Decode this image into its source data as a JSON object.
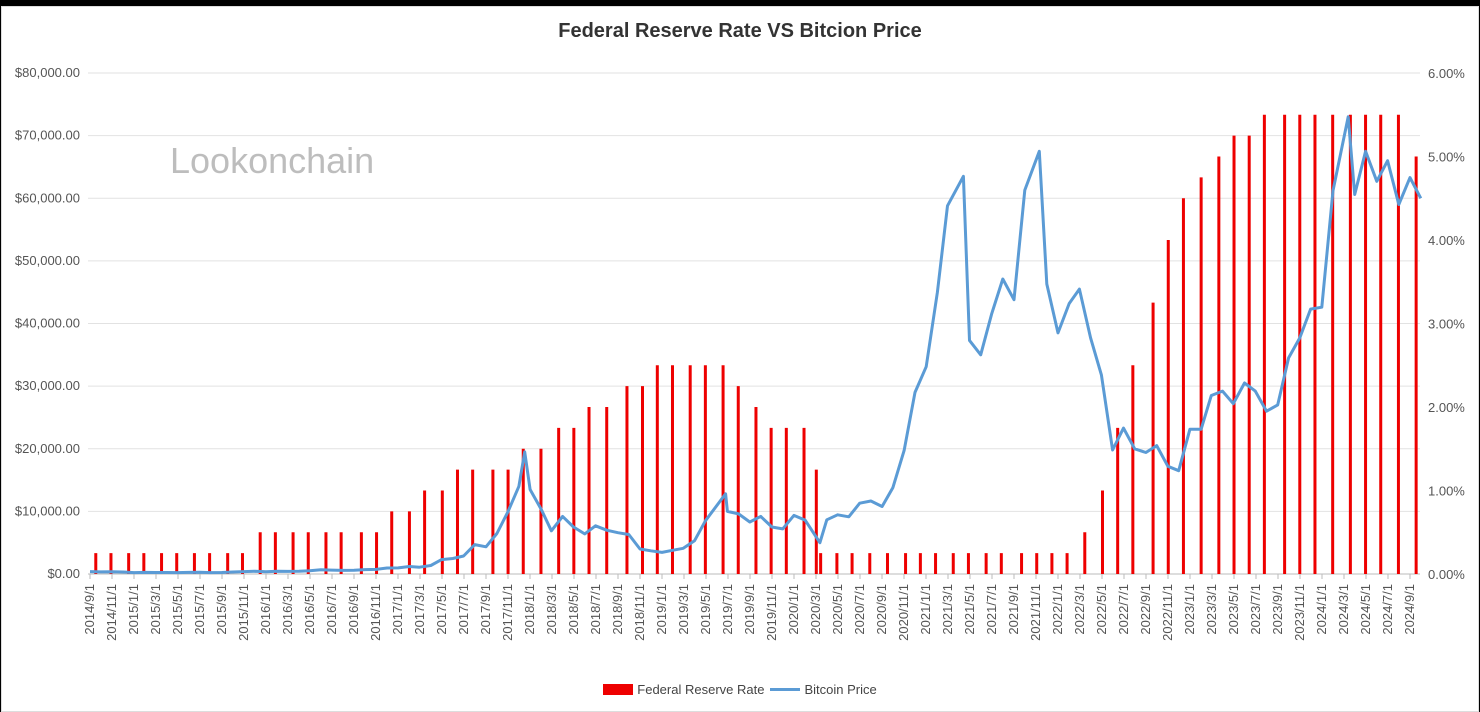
{
  "chart_data": {
    "type": "bar+line",
    "title": "Federal Reserve Rate VS Bitcion Price",
    "watermark": "Lookonchain",
    "colors": {
      "rate": "#ee0000",
      "price": "#5b9bd5"
    },
    "grid": true,
    "legend_placement": "bottom",
    "y_left": {
      "range": [
        0,
        80000
      ],
      "ticks": [
        "$0.00",
        "$10,000.00",
        "$20,000.00",
        "$30,000.00",
        "$40,000.00",
        "$50,000.00",
        "$60,000.00",
        "$70,000.00",
        "$80,000.00"
      ]
    },
    "y_right": {
      "range": [
        0,
        6
      ],
      "ticks": [
        "0.00%",
        "1.00%",
        "2.00%",
        "3.00%",
        "4.00%",
        "5.00%",
        "6.00%"
      ]
    },
    "x_ticks": [
      "2014/9/1",
      "2014/11/1",
      "2015/1/1",
      "2015/3/1",
      "2015/5/1",
      "2015/7/1",
      "2015/9/1",
      "2015/11/1",
      "2016/1/1",
      "2016/3/1",
      "2016/5/1",
      "2016/7/1",
      "2016/9/1",
      "2016/11/1",
      "2017/1/1",
      "2017/3/1",
      "2017/5/1",
      "2017/7/1",
      "2017/9/1",
      "2017/11/1",
      "2018/1/1",
      "2018/3/1",
      "2018/5/1",
      "2018/7/1",
      "2018/9/1",
      "2018/11/1",
      "2019/1/1",
      "2019/3/1",
      "2019/5/1",
      "2019/7/1",
      "2019/9/1",
      "2019/11/1",
      "2020/1/1",
      "2020/3/1",
      "2020/5/1",
      "2020/7/1",
      "2020/9/1",
      "2020/11/1",
      "2021/1/1",
      "2021/3/1",
      "2021/5/1",
      "2021/7/1",
      "2021/9/1",
      "2021/11/1",
      "2022/1/1",
      "2022/3/1",
      "2022/5/1",
      "2022/7/1",
      "2022/9/1",
      "2022/11/1",
      "2023/1/1",
      "2023/3/1",
      "2023/5/1",
      "2023/7/1",
      "2023/9/1",
      "2023/11/1",
      "2024/1/1",
      "2024/3/1",
      "2024/5/1",
      "2024/7/1",
      "2024/9/1"
    ],
    "series": [
      {
        "name": "Federal Reserve Rate",
        "type": "bar",
        "axis": "right",
        "points": [
          [
            "2014-09-17",
            0.25
          ],
          [
            "2014-10-29",
            0.25
          ],
          [
            "2014-12-17",
            0.25
          ],
          [
            "2015-01-28",
            0.25
          ],
          [
            "2015-03-18",
            0.25
          ],
          [
            "2015-04-29",
            0.25
          ],
          [
            "2015-06-17",
            0.25
          ],
          [
            "2015-07-29",
            0.25
          ],
          [
            "2015-09-17",
            0.25
          ],
          [
            "2015-10-28",
            0.25
          ],
          [
            "2015-12-16",
            0.5
          ],
          [
            "2016-01-27",
            0.5
          ],
          [
            "2016-03-16",
            0.5
          ],
          [
            "2016-04-27",
            0.5
          ],
          [
            "2016-06-15",
            0.5
          ],
          [
            "2016-07-27",
            0.5
          ],
          [
            "2016-09-21",
            0.5
          ],
          [
            "2016-11-02",
            0.5
          ],
          [
            "2016-12-14",
            0.75
          ],
          [
            "2017-02-01",
            0.75
          ],
          [
            "2017-03-15",
            1.0
          ],
          [
            "2017-05-03",
            1.0
          ],
          [
            "2017-06-14",
            1.25
          ],
          [
            "2017-07-26",
            1.25
          ],
          [
            "2017-09-20",
            1.25
          ],
          [
            "2017-11-01",
            1.25
          ],
          [
            "2017-12-13",
            1.5
          ],
          [
            "2018-01-31",
            1.5
          ],
          [
            "2018-03-21",
            1.75
          ],
          [
            "2018-05-02",
            1.75
          ],
          [
            "2018-06-13",
            2.0
          ],
          [
            "2018-08-01",
            2.0
          ],
          [
            "2018-09-26",
            2.25
          ],
          [
            "2018-11-08",
            2.25
          ],
          [
            "2018-12-19",
            2.5
          ],
          [
            "2019-01-30",
            2.5
          ],
          [
            "2019-03-20",
            2.5
          ],
          [
            "2019-05-01",
            2.5
          ],
          [
            "2019-06-19",
            2.5
          ],
          [
            "2019-07-31",
            2.25
          ],
          [
            "2019-09-18",
            2.0
          ],
          [
            "2019-10-30",
            1.75
          ],
          [
            "2019-12-11",
            1.75
          ],
          [
            "2020-01-29",
            1.75
          ],
          [
            "2020-03-03",
            1.25
          ],
          [
            "2020-03-15",
            0.25
          ],
          [
            "2020-04-29",
            0.25
          ],
          [
            "2020-06-10",
            0.25
          ],
          [
            "2020-07-29",
            0.25
          ],
          [
            "2020-09-16",
            0.25
          ],
          [
            "2020-11-05",
            0.25
          ],
          [
            "2020-12-16",
            0.25
          ],
          [
            "2021-01-27",
            0.25
          ],
          [
            "2021-03-17",
            0.25
          ],
          [
            "2021-04-28",
            0.25
          ],
          [
            "2021-06-16",
            0.25
          ],
          [
            "2021-07-28",
            0.25
          ],
          [
            "2021-09-22",
            0.25
          ],
          [
            "2021-11-03",
            0.25
          ],
          [
            "2021-12-15",
            0.25
          ],
          [
            "2022-01-26",
            0.25
          ],
          [
            "2022-03-16",
            0.5
          ],
          [
            "2022-05-04",
            1.0
          ],
          [
            "2022-06-15",
            1.75
          ],
          [
            "2022-07-27",
            2.5
          ],
          [
            "2022-09-21",
            3.25
          ],
          [
            "2022-11-02",
            4.0
          ],
          [
            "2022-12-14",
            4.5
          ],
          [
            "2023-02-01",
            4.75
          ],
          [
            "2023-03-22",
            5.0
          ],
          [
            "2023-05-03",
            5.25
          ],
          [
            "2023-06-14",
            5.25
          ],
          [
            "2023-07-26",
            5.5
          ],
          [
            "2023-09-20",
            5.5
          ],
          [
            "2023-11-01",
            5.5
          ],
          [
            "2023-12-13",
            5.5
          ],
          [
            "2024-01-31",
            5.5
          ],
          [
            "2024-03-20",
            5.5
          ],
          [
            "2024-05-01",
            5.5
          ],
          [
            "2024-06-12",
            5.5
          ],
          [
            "2024-07-31",
            5.5
          ],
          [
            "2024-09-18",
            5.0
          ]
        ]
      },
      {
        "name": "Bitcoin Price",
        "type": "line",
        "axis": "left",
        "points": [
          [
            "2014-09-01",
            390
          ],
          [
            "2014-10-01",
            340
          ],
          [
            "2014-11-01",
            375
          ],
          [
            "2014-12-01",
            320
          ],
          [
            "2015-01-01",
            220
          ],
          [
            "2015-02-01",
            255
          ],
          [
            "2015-03-01",
            245
          ],
          [
            "2015-04-01",
            235
          ],
          [
            "2015-05-01",
            230
          ],
          [
            "2015-06-01",
            260
          ],
          [
            "2015-07-01",
            285
          ],
          [
            "2015-08-01",
            230
          ],
          [
            "2015-09-01",
            236
          ],
          [
            "2015-10-01",
            315
          ],
          [
            "2015-11-01",
            377
          ],
          [
            "2015-12-01",
            430
          ],
          [
            "2016-01-01",
            370
          ],
          [
            "2016-02-01",
            437
          ],
          [
            "2016-03-01",
            416
          ],
          [
            "2016-04-01",
            448
          ],
          [
            "2016-05-01",
            530
          ],
          [
            "2016-06-01",
            670
          ],
          [
            "2016-07-01",
            624
          ],
          [
            "2016-08-01",
            575
          ],
          [
            "2016-09-01",
            608
          ],
          [
            "2016-10-01",
            700
          ],
          [
            "2016-11-01",
            742
          ],
          [
            "2016-12-01",
            963
          ],
          [
            "2017-01-01",
            970
          ],
          [
            "2017-02-01",
            1190
          ],
          [
            "2017-03-01",
            1080
          ],
          [
            "2017-04-01",
            1350
          ],
          [
            "2017-05-01",
            2300
          ],
          [
            "2017-06-01",
            2480
          ],
          [
            "2017-07-01",
            2875
          ],
          [
            "2017-08-01",
            4700
          ],
          [
            "2017-09-01",
            4340
          ],
          [
            "2017-10-01",
            6470
          ],
          [
            "2017-11-01",
            10000
          ],
          [
            "2017-12-01",
            14000
          ],
          [
            "2017-12-17",
            19500
          ],
          [
            "2018-01-01",
            13500
          ],
          [
            "2018-02-01",
            10300
          ],
          [
            "2018-03-01",
            6900
          ],
          [
            "2018-04-01",
            9200
          ],
          [
            "2018-05-01",
            7500
          ],
          [
            "2018-06-01",
            6400
          ],
          [
            "2018-07-01",
            7700
          ],
          [
            "2018-08-01",
            7000
          ],
          [
            "2018-09-01",
            6600
          ],
          [
            "2018-10-01",
            6300
          ],
          [
            "2018-11-01",
            4000
          ],
          [
            "2018-12-01",
            3700
          ],
          [
            "2019-01-01",
            3450
          ],
          [
            "2019-02-01",
            3800
          ],
          [
            "2019-03-01",
            4100
          ],
          [
            "2019-04-01",
            5300
          ],
          [
            "2019-05-01",
            8500
          ],
          [
            "2019-06-26",
            12800
          ],
          [
            "2019-07-01",
            10000
          ],
          [
            "2019-08-01",
            9600
          ],
          [
            "2019-09-01",
            8300
          ],
          [
            "2019-10-01",
            9200
          ],
          [
            "2019-11-01",
            7500
          ],
          [
            "2019-12-01",
            7200
          ],
          [
            "2020-01-01",
            9350
          ],
          [
            "2020-02-01",
            8600
          ],
          [
            "2020-03-13",
            5000
          ],
          [
            "2020-04-01",
            8650
          ],
          [
            "2020-05-01",
            9450
          ],
          [
            "2020-06-01",
            9140
          ],
          [
            "2020-07-01",
            11300
          ],
          [
            "2020-08-01",
            11650
          ],
          [
            "2020-09-01",
            10780
          ],
          [
            "2020-10-01",
            13800
          ],
          [
            "2020-11-01",
            19700
          ],
          [
            "2020-12-01",
            29000
          ],
          [
            "2021-01-01",
            33100
          ],
          [
            "2021-02-01",
            45000
          ],
          [
            "2021-03-01",
            58800
          ],
          [
            "2021-04-14",
            63500
          ],
          [
            "2021-05-01",
            37300
          ],
          [
            "2021-06-01",
            35000
          ],
          [
            "2021-07-01",
            41500
          ],
          [
            "2021-08-01",
            47100
          ],
          [
            "2021-09-01",
            43800
          ],
          [
            "2021-10-01",
            61300
          ],
          [
            "2021-11-10",
            67500
          ],
          [
            "2021-12-01",
            46300
          ],
          [
            "2022-01-01",
            38500
          ],
          [
            "2022-02-01",
            43200
          ],
          [
            "2022-03-01",
            45500
          ],
          [
            "2022-04-01",
            37700
          ],
          [
            "2022-05-01",
            31800
          ],
          [
            "2022-06-01",
            19800
          ],
          [
            "2022-07-01",
            23300
          ],
          [
            "2022-08-01",
            20000
          ],
          [
            "2022-09-01",
            19400
          ],
          [
            "2022-10-01",
            20500
          ],
          [
            "2022-11-01",
            17200
          ],
          [
            "2022-12-01",
            16500
          ],
          [
            "2023-01-01",
            23100
          ],
          [
            "2023-02-01",
            23100
          ],
          [
            "2023-03-01",
            28500
          ],
          [
            "2023-04-01",
            29200
          ],
          [
            "2023-05-01",
            27200
          ],
          [
            "2023-06-01",
            30500
          ],
          [
            "2023-07-01",
            29200
          ],
          [
            "2023-08-01",
            26000
          ],
          [
            "2023-09-01",
            27000
          ],
          [
            "2023-10-01",
            34500
          ],
          [
            "2023-11-01",
            37700
          ],
          [
            "2023-12-01",
            42300
          ],
          [
            "2024-01-01",
            42600
          ],
          [
            "2024-02-01",
            61200
          ],
          [
            "2024-03-14",
            73000
          ],
          [
            "2024-04-01",
            60600
          ],
          [
            "2024-05-01",
            67500
          ],
          [
            "2024-06-01",
            62700
          ],
          [
            "2024-07-01",
            66000
          ],
          [
            "2024-08-01",
            59000
          ],
          [
            "2024-09-01",
            63300
          ],
          [
            "2024-10-01",
            60000
          ]
        ]
      }
    ]
  }
}
